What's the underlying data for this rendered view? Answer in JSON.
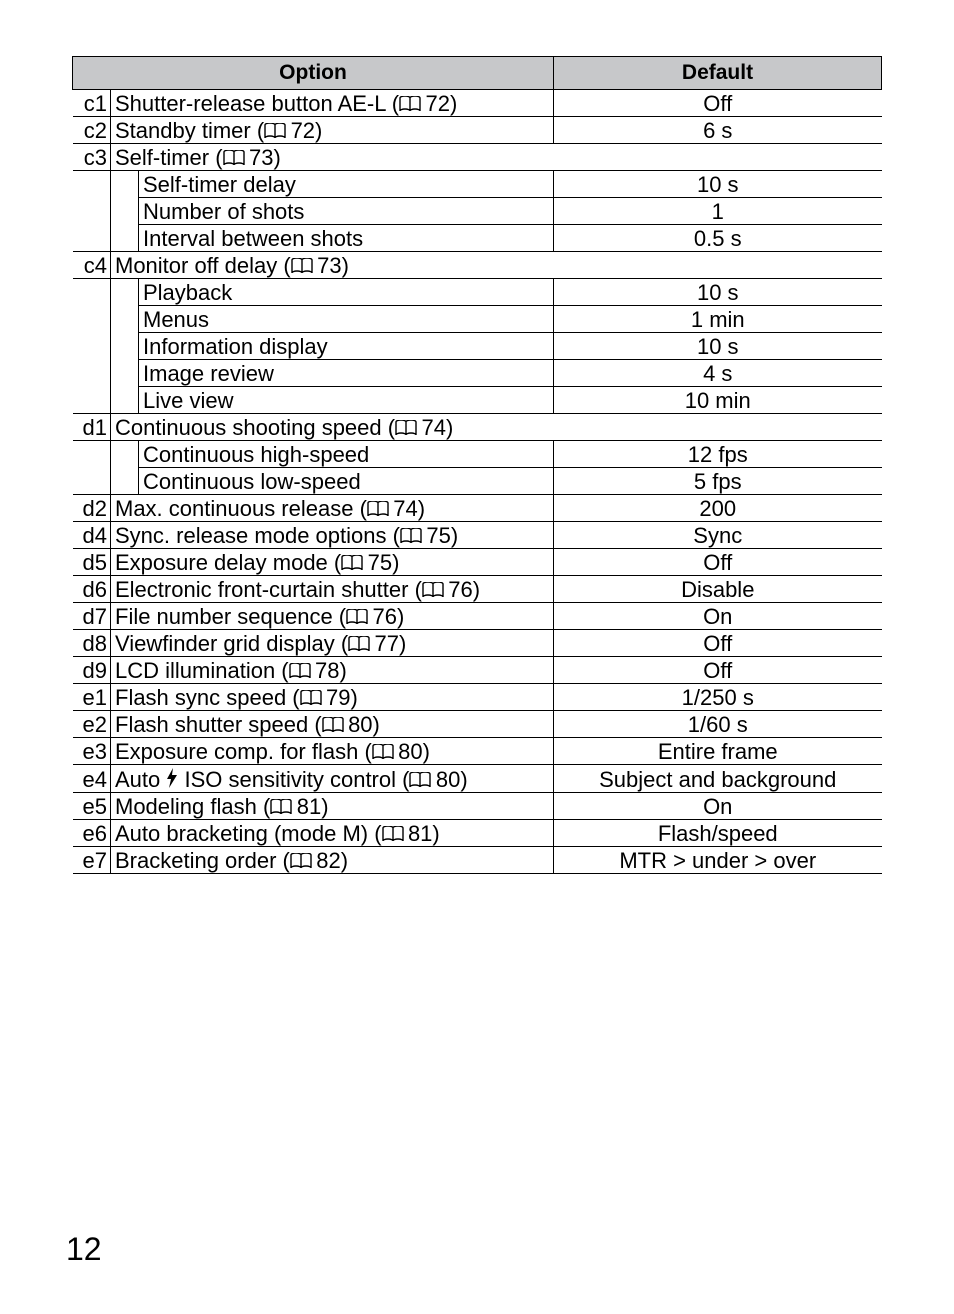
{
  "page_number": "12",
  "icons": {
    "book": "📖",
    "flash": "⚡"
  },
  "colors": {
    "header_bg": "#c7c8ca",
    "border": "#000000",
    "text": "#000000",
    "page_bg": "#ffffff"
  },
  "table": {
    "headers": {
      "option": "Option",
      "default": "Default"
    },
    "rows": [
      {
        "type": "item",
        "code": "c1",
        "option": "Shutter-release button AE-L",
        "ref": "72",
        "default": "Off"
      },
      {
        "type": "item",
        "code": "c2",
        "option": "Standby timer",
        "ref": "72",
        "default": "6 s"
      },
      {
        "type": "group",
        "code": "c3",
        "option": "Self-timer",
        "ref": "73"
      },
      {
        "type": "sub",
        "option": "Self-timer delay",
        "default": "10 s"
      },
      {
        "type": "sub",
        "option": "Number of shots",
        "default": "1"
      },
      {
        "type": "sub",
        "option": "Interval between shots",
        "default": "0.5 s"
      },
      {
        "type": "group",
        "code": "c4",
        "option": "Monitor off delay",
        "ref": "73"
      },
      {
        "type": "sub",
        "option": "Playback",
        "default": "10 s"
      },
      {
        "type": "sub",
        "option": "Menus",
        "default": "1 min"
      },
      {
        "type": "sub",
        "option": "Information display",
        "default": "10 s"
      },
      {
        "type": "sub",
        "option": "Image review",
        "default": "4 s"
      },
      {
        "type": "sub",
        "option": "Live view",
        "default": "10 min"
      },
      {
        "type": "group",
        "code": "d1",
        "option": "Continuous shooting speed",
        "ref": "74"
      },
      {
        "type": "sub",
        "option": "Continuous high-speed",
        "default": "12 fps"
      },
      {
        "type": "sub",
        "option": "Continuous low-speed",
        "default": "5 fps"
      },
      {
        "type": "item",
        "code": "d2",
        "option": "Max. continuous release",
        "ref": "74",
        "default": "200"
      },
      {
        "type": "item",
        "code": "d4",
        "option": "Sync. release mode options",
        "ref": "75",
        "default": "Sync"
      },
      {
        "type": "item",
        "code": "d5",
        "option": "Exposure delay mode",
        "ref": "75",
        "default": "Off"
      },
      {
        "type": "item",
        "code": "d6",
        "option": "Electronic front-curtain shutter",
        "ref": "76",
        "default": "Disable"
      },
      {
        "type": "item",
        "code": "d7",
        "option": "File number sequence",
        "ref": "76",
        "default": "On"
      },
      {
        "type": "item",
        "code": "d8",
        "option": "Viewfinder grid display",
        "ref": "77",
        "default": "Off"
      },
      {
        "type": "item",
        "code": "d9",
        "option": "LCD illumination",
        "ref": "78",
        "default": "Off"
      },
      {
        "type": "item",
        "code": "e1",
        "option": "Flash sync speed",
        "ref": "79",
        "default": "1/250 s"
      },
      {
        "type": "item",
        "code": "e2",
        "option": "Flash shutter speed",
        "ref": "80",
        "default": "1/60 s"
      },
      {
        "type": "item",
        "code": "e3",
        "option": "Exposure comp. for flash",
        "ref": "80",
        "default": "Entire frame"
      },
      {
        "type": "item",
        "code": "e4",
        "option_prefix": "Auto ",
        "flash_icon": true,
        "option_suffix": " ISO sensitivity control",
        "ref": "80",
        "default": "Subject and background"
      },
      {
        "type": "item",
        "code": "e5",
        "option": "Modeling flash",
        "ref": "81",
        "default": "On"
      },
      {
        "type": "item",
        "code": "e6",
        "option": "Auto bracketing (mode M)",
        "ref": "81",
        "default": "Flash/speed"
      },
      {
        "type": "item",
        "code": "e7",
        "option": "Bracketing order",
        "ref": "82",
        "default": "MTR > under > over"
      }
    ]
  }
}
